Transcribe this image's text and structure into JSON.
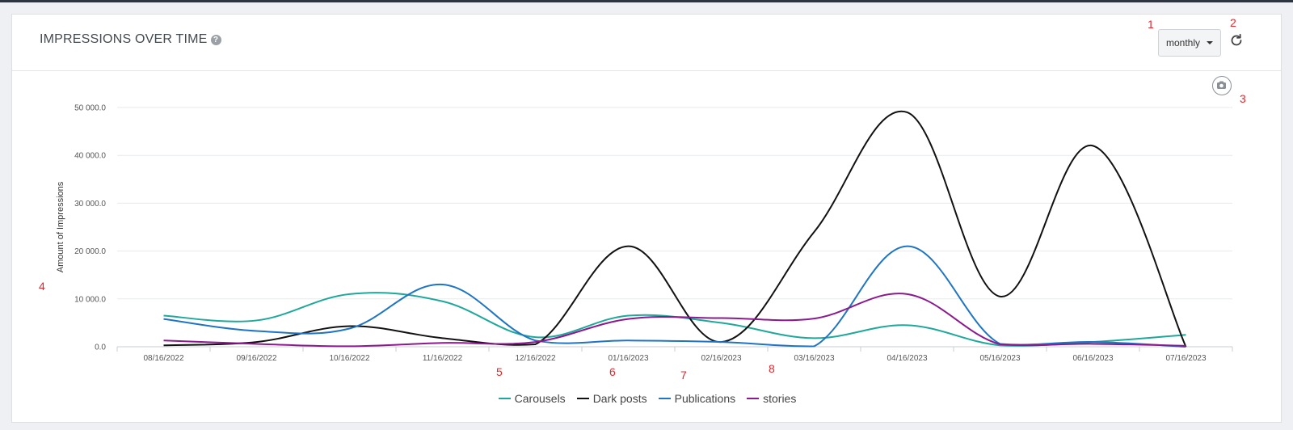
{
  "header": {
    "title": "IMPRESSIONS OVER TIME",
    "help_icon": "?",
    "period_select": "monthly"
  },
  "annotations": [
    "1",
    "2",
    "3",
    "4",
    "5",
    "6",
    "7",
    "8"
  ],
  "chart_data": {
    "type": "line",
    "title": "IMPRESSIONS OVER TIME",
    "xlabel": "",
    "ylabel": "Amount of Impressions",
    "categories": [
      "08/16/2022",
      "09/16/2022",
      "10/16/2022",
      "11/16/2022",
      "12/16/2022",
      "01/16/2023",
      "02/16/2023",
      "03/16/2023",
      "04/16/2023",
      "05/16/2023",
      "06/16/2023",
      "07/16/2023"
    ],
    "yticks": [
      "0.0",
      "10 000.0",
      "20 000.0",
      "30 000.0",
      "40 000.0",
      "50 000.0"
    ],
    "ylim": [
      0,
      50000
    ],
    "grid": true,
    "legend_position": "bottom",
    "series": [
      {
        "name": "Carousels",
        "color": "#1fa89a",
        "values": [
          6500,
          5500,
          11000,
          9500,
          2000,
          6500,
          5000,
          1800,
          4500,
          300,
          1000,
          2500
        ]
      },
      {
        "name": "Dark posts",
        "color": "#111111",
        "values": [
          300,
          1000,
          4300,
          1800,
          500,
          21000,
          1000,
          24000,
          49000,
          10500,
          42000,
          0
        ]
      },
      {
        "name": "Publications",
        "color": "#1f74c4",
        "values": [
          5800,
          3300,
          3800,
          13000,
          1300,
          1300,
          1000,
          100,
          21000,
          600,
          1000,
          0
        ]
      },
      {
        "name": "stories",
        "color": "#8a1a8e",
        "values": [
          1300,
          600,
          100,
          800,
          1000,
          5800,
          6000,
          5900,
          11000,
          500,
          600,
          200
        ]
      }
    ]
  }
}
